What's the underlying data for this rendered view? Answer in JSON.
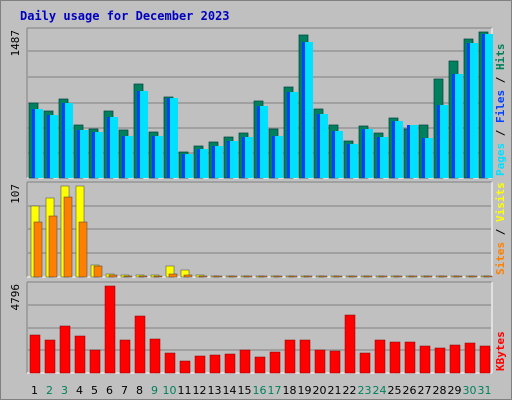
{
  "title": "Daily usage for December 2023",
  "colors": {
    "hits": "#00805c",
    "files": "#0040ff",
    "pages": "#00e0ff",
    "visits": "#ffff00",
    "sites": "#ff8000",
    "kbytes": "#ff0000",
    "weekday_label": "#000000",
    "weekend_label": "#00805c"
  },
  "chart_data": [
    {
      "type": "bar",
      "panel": "hits-files-pages",
      "max_label": "1487",
      "legend": [
        "Pages",
        "Files",
        "Hits"
      ],
      "categories": [
        "1",
        "2",
        "3",
        "4",
        "5",
        "6",
        "7",
        "8",
        "9",
        "10",
        "11",
        "12",
        "13",
        "14",
        "15",
        "16",
        "17",
        "18",
        "19",
        "20",
        "21",
        "22",
        "23",
        "24",
        "25",
        "26",
        "27",
        "28",
        "29",
        "30",
        "31"
      ],
      "weekend_days": [
        "2",
        "3",
        "9",
        "10",
        "16",
        "17",
        "23",
        "24",
        "30",
        "31"
      ],
      "ylim": [
        0,
        1487
      ],
      "series": [
        {
          "name": "Hits",
          "values": [
            760,
            680,
            800,
            540,
            500,
            680,
            490,
            960,
            470,
            830,
            260,
            330,
            370,
            420,
            460,
            780,
            500,
            930,
            1460,
            700,
            540,
            380,
            530,
            460,
            610,
            500,
            540,
            1010,
            1190,
            1420,
            1487
          ]
        },
        {
          "name": "Files",
          "values": [
            700,
            640,
            760,
            490,
            470,
            620,
            430,
            890,
            430,
            810,
            240,
            300,
            330,
            380,
            420,
            730,
            430,
            880,
            1390,
            650,
            480,
            350,
            500,
            420,
            580,
            540,
            410,
            740,
            1060,
            1370,
            1470
          ]
        },
        {
          "name": "Pages",
          "values": [
            700,
            640,
            760,
            490,
            470,
            620,
            430,
            890,
            430,
            810,
            240,
            300,
            330,
            380,
            420,
            730,
            430,
            880,
            1390,
            650,
            480,
            350,
            500,
            420,
            580,
            540,
            410,
            740,
            1060,
            1370,
            1470
          ]
        }
      ]
    },
    {
      "type": "bar",
      "panel": "sites-visits",
      "max_label": "107",
      "legend": [
        "Sites",
        "Visits"
      ],
      "ylim": [
        0,
        107
      ],
      "series": [
        {
          "name": "Visits",
          "values": [
            83,
            93,
            107,
            107,
            14,
            4,
            2,
            2,
            2,
            13,
            8,
            2,
            1,
            1,
            1,
            1,
            1,
            1,
            1,
            1,
            1,
            1,
            1,
            1,
            1,
            1,
            1,
            1,
            1,
            1,
            1
          ]
        },
        {
          "name": "Sites",
          "values": [
            65,
            72,
            94,
            65,
            13,
            2,
            1,
            1,
            1,
            3,
            2,
            1,
            1,
            1,
            1,
            1,
            1,
            1,
            1,
            1,
            1,
            1,
            1,
            1,
            1,
            1,
            1,
            1,
            1,
            1,
            1
          ]
        }
      ]
    },
    {
      "type": "bar",
      "panel": "kbytes",
      "max_label": "4796",
      "legend": [
        "KBytes"
      ],
      "ylim": [
        0,
        4796
      ],
      "series": [
        {
          "name": "KBytes",
          "values": [
            2080,
            1820,
            2600,
            2040,
            1260,
            4796,
            1800,
            3160,
            1850,
            1110,
            650,
            950,
            990,
            1030,
            1260,
            880,
            1180,
            1820,
            1800,
            1260,
            1230,
            3180,
            1090,
            1830,
            1730,
            1720,
            1490,
            1360,
            1530,
            1680,
            1500
          ]
        }
      ]
    }
  ]
}
